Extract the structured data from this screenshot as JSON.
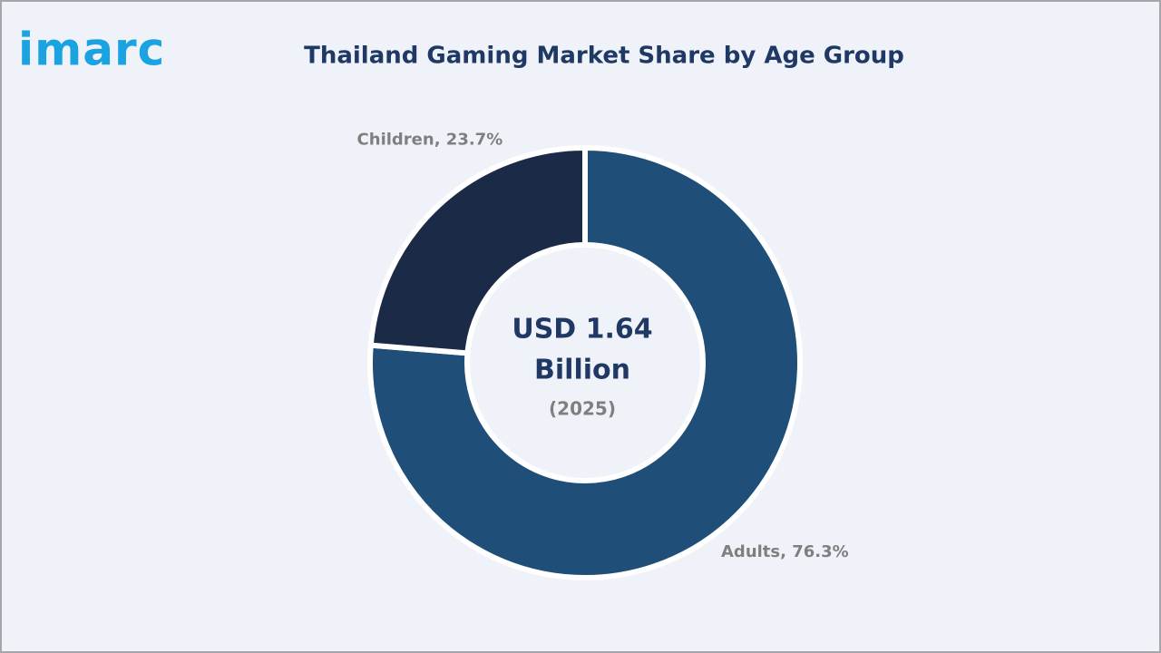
{
  "logo": "imarc",
  "chart_data": {
    "type": "donut",
    "title": "Thailand Gaming Market Share by Age Group",
    "categories": [
      "Adults",
      "Children"
    ],
    "values": [
      76.3,
      23.7
    ],
    "value_labels": [
      "Adults, 76.3%",
      "Children, 23.7%"
    ],
    "colors": [
      "#1f4e79",
      "#1b2a47"
    ],
    "center_text": [
      "USD 1.64",
      "Billion"
    ],
    "center_subtext": "(2025)"
  }
}
